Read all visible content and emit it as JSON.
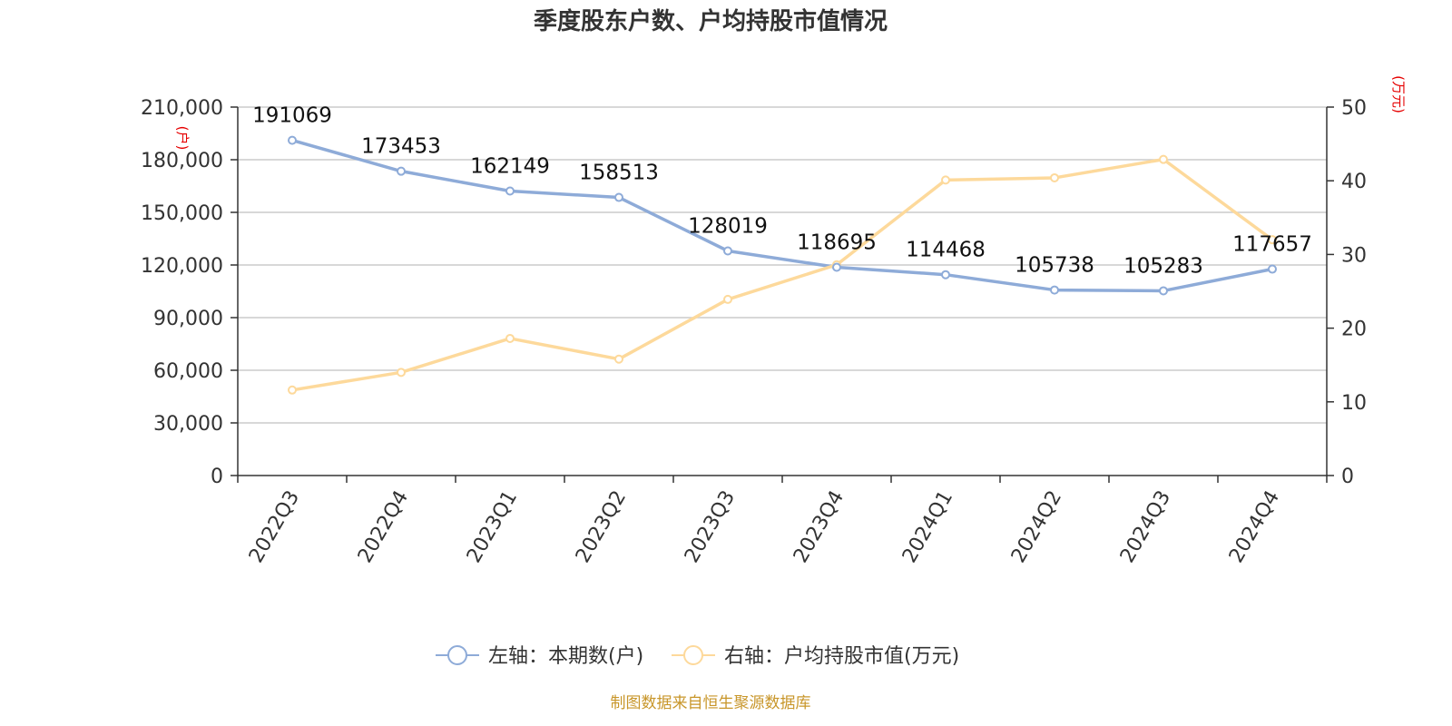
{
  "chart_data": {
    "type": "line",
    "title": "季度股东户数、户均持股市值情况",
    "categories": [
      "2022Q3",
      "2022Q4",
      "2023Q1",
      "2023Q2",
      "2023Q3",
      "2023Q4",
      "2024Q1",
      "2024Q2",
      "2024Q3",
      "2024Q4"
    ],
    "left_axis": {
      "unit_label": "(户)",
      "min": 0,
      "max": 210000,
      "ticks": [
        "0",
        "30,000",
        "60,000",
        "90,000",
        "120,000",
        "150,000",
        "180,000",
        "210,000"
      ]
    },
    "right_axis": {
      "unit_label": "(万元)",
      "min": 0,
      "max": 50,
      "ticks": [
        "0",
        "10",
        "20",
        "30",
        "40",
        "50"
      ]
    },
    "grid": true,
    "legend_position": "bottom",
    "series": [
      {
        "name": "左轴：本期数(户)",
        "axis": "left",
        "color": "#8eabd8",
        "values": [
          191069,
          173453,
          162149,
          158513,
          128019,
          118695,
          114468,
          105738,
          105283,
          117657
        ],
        "labels": [
          "191069",
          "173453",
          "162149",
          "158513",
          "128019",
          "118695",
          "114468",
          "105738",
          "105283",
          "117657"
        ]
      },
      {
        "name": "右轴：户均持股市值(万元)",
        "axis": "right",
        "color": "#fdd99b",
        "values": [
          11.6,
          14.0,
          18.6,
          15.8,
          23.9,
          28.6,
          40.1,
          40.4,
          42.9,
          32.0
        ]
      }
    ]
  },
  "footer": {
    "source": "制图数据来自恒生聚源数据库"
  }
}
